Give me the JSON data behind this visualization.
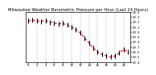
{
  "title": "Milwaukee Weather Barometric Pressure per Hour (Last 24 Hours)",
  "hours": [
    0,
    1,
    2,
    3,
    4,
    5,
    6,
    7,
    8,
    9,
    10,
    11,
    12,
    13,
    14,
    15,
    16,
    17,
    18,
    19,
    20,
    21,
    22,
    23
  ],
  "pressure": [
    30.22,
    30.24,
    30.22,
    30.21,
    30.23,
    30.2,
    30.18,
    30.16,
    30.17,
    30.14,
    30.1,
    30.05,
    29.98,
    29.88,
    29.78,
    29.68,
    29.6,
    29.55,
    29.52,
    29.5,
    29.52,
    29.58,
    29.65,
    29.6
  ],
  "ylim": [
    29.4,
    30.4
  ],
  "yticks": [
    29.4,
    29.5,
    29.6,
    29.7,
    29.8,
    29.9,
    30.0,
    30.1,
    30.2,
    30.3,
    30.4
  ],
  "ytick_labels": [
    "29.4",
    "29.5",
    "29.6",
    "29.7",
    "29.8",
    "29.9",
    "30.0",
    "30.1",
    "30.2",
    "30.3",
    "30.4"
  ],
  "line_color": "#ff0000",
  "marker_color": "#000000",
  "grid_color": "#888888",
  "bg_color": "#ffffff",
  "title_color": "#000000",
  "title_fontsize": 3.8,
  "tick_fontsize": 2.8,
  "xtick_hours": [
    0,
    2,
    4,
    6,
    8,
    10,
    12,
    14,
    16,
    18,
    20,
    22
  ],
  "xtick_labels": [
    "0",
    "2",
    "4",
    "6",
    "8",
    "10",
    "12",
    "14",
    "16",
    "18",
    "20",
    "22"
  ],
  "vgrid_hours": [
    2,
    4,
    6,
    8,
    10,
    12,
    14,
    16,
    18,
    20,
    22
  ]
}
